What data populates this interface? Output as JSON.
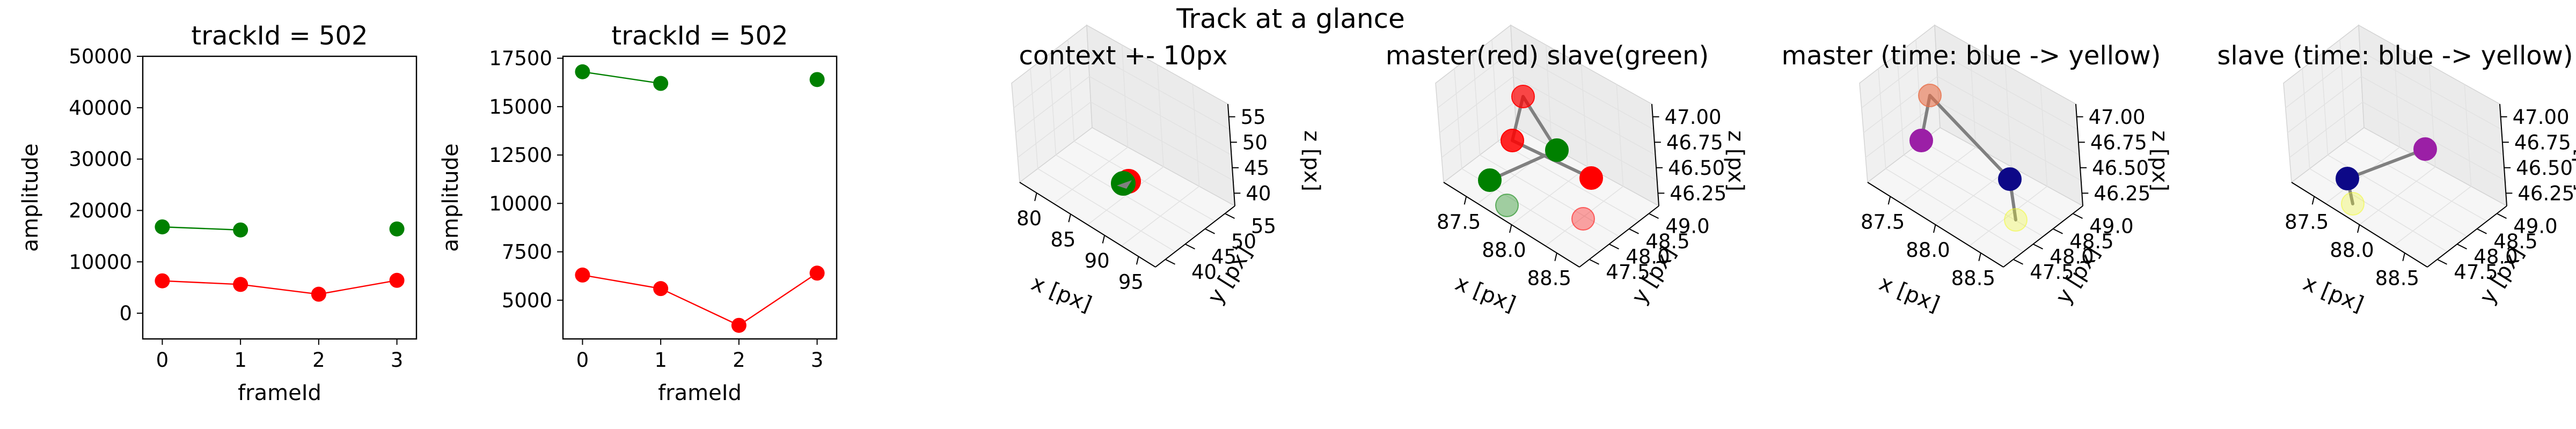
{
  "suptitle": "Track at a glance",
  "chart_data": [
    {
      "type": "line",
      "title": "trackId = 502",
      "xlabel": "frameId",
      "ylabel": "amplitude",
      "x": [
        0,
        1,
        2,
        3
      ],
      "xticks": [
        0,
        1,
        2,
        3
      ],
      "xlim": [
        -0.25,
        3.25
      ],
      "ylim": [
        -5000,
        50000
      ],
      "yticks": [
        0,
        10000,
        20000,
        30000,
        40000,
        50000
      ],
      "series": [
        {
          "color": "#ff0000",
          "values": [
            6300,
            5600,
            3700,
            6400
          ],
          "connect": [
            true,
            true,
            true
          ]
        },
        {
          "color": "#008000",
          "values": [
            16800,
            16200,
            null,
            16400
          ],
          "connect": [
            true,
            false,
            false
          ]
        }
      ]
    },
    {
      "type": "line",
      "title": "trackId = 502",
      "xlabel": "frameId",
      "ylabel": "amplitude",
      "x": [
        0,
        1,
        2,
        3
      ],
      "xticks": [
        0,
        1,
        2,
        3
      ],
      "xlim": [
        -0.25,
        3.25
      ],
      "ylim": [
        3000,
        17600
      ],
      "yticks": [
        5000,
        7500,
        10000,
        12500,
        15000,
        17500
      ],
      "series": [
        {
          "color": "#ff0000",
          "values": [
            6300,
            5600,
            3700,
            6400
          ],
          "connect": [
            true,
            true,
            true
          ]
        },
        {
          "color": "#008000",
          "values": [
            16800,
            16200,
            null,
            16400
          ],
          "connect": [
            true,
            false,
            false
          ]
        }
      ]
    },
    {
      "type": "scatter",
      "title": "context +- 10px",
      "xlabel": "x [px]",
      "ylabel": "y [px]",
      "zlabel": "z [px]",
      "xticks": [
        "80",
        "85",
        "90",
        "95"
      ],
      "yticks": [
        "40",
        "45",
        "50",
        "55"
      ],
      "zticks": [
        "40",
        "45",
        "50",
        "55"
      ],
      "points": [
        {
          "color": "#ff0000",
          "alpha": 1.0
        },
        {
          "color": "#008000",
          "alpha": 1.0
        }
      ]
    },
    {
      "type": "scatter",
      "title": "master(red) slave(green)",
      "xlabel": "x [px]",
      "ylabel": "y [px]",
      "zlabel": "z [px]",
      "xticks": [
        "87.5",
        "88.0",
        "88.5"
      ],
      "yticks": [
        "47.5",
        "48.0",
        "48.5",
        "49.0"
      ],
      "zticks": [
        "46.25",
        "46.50",
        "46.75",
        "47.00"
      ],
      "points": [
        {
          "color": "#ff0000",
          "alpha": 0.7
        },
        {
          "color": "#ff0000",
          "alpha": 0.85
        },
        {
          "color": "#ff0000",
          "alpha": 1.0
        },
        {
          "color": "#ff0000",
          "alpha": 0.35
        },
        {
          "color": "#008000",
          "alpha": 1.0
        },
        {
          "color": "#008000",
          "alpha": 1.0
        },
        {
          "color": "#008000",
          "alpha": 0.35
        }
      ]
    },
    {
      "type": "scatter",
      "title": "master (time: blue -> yellow)",
      "xlabel": "x [px]",
      "ylabel": "y [px]",
      "zlabel": "z [px]",
      "xticks": [
        "87.5",
        "88.0",
        "88.5"
      ],
      "yticks": [
        "47.5",
        "48.0",
        "48.5",
        "49.0"
      ],
      "zticks": [
        "46.25",
        "46.50",
        "46.75",
        "47.00"
      ],
      "points": [
        {
          "color": "#e8704a",
          "alpha": 0.6
        },
        {
          "color": "#9b1fa6",
          "alpha": 1.0
        },
        {
          "color": "#0d0887",
          "alpha": 1.0
        },
        {
          "color": "#f0f921",
          "alpha": 0.3
        }
      ]
    },
    {
      "type": "scatter",
      "title": "slave (time: blue -> yellow)",
      "xlabel": "x [px]",
      "ylabel": "y [px]",
      "zlabel": "z [px]",
      "xticks": [
        "87.5",
        "88.0",
        "88.5"
      ],
      "yticks": [
        "47.5",
        "48.0",
        "48.5",
        "49.0"
      ],
      "zticks": [
        "46.25",
        "46.50",
        "46.75",
        "47.00"
      ],
      "points": [
        {
          "color": "#9b1fa6",
          "alpha": 1.0
        },
        {
          "color": "#0d0887",
          "alpha": 1.0
        },
        {
          "color": "#f0f921",
          "alpha": 0.3
        }
      ]
    }
  ]
}
